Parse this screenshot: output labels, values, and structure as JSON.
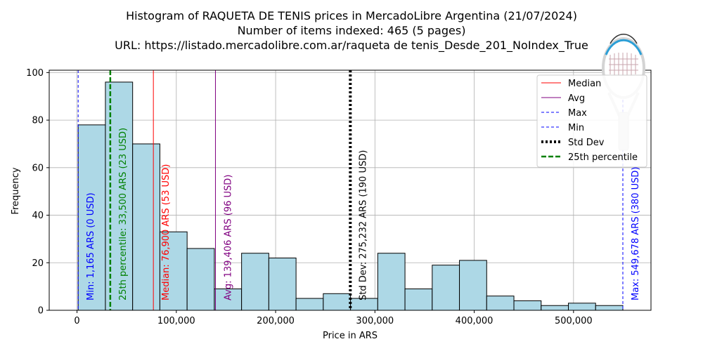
{
  "titles": {
    "line1": "Histogram of RAQUETA DE TENIS prices in MercadoLibre Argentina (21/07/2024)",
    "line2": "Number of items indexed: 465 (5 pages)",
    "line3": "URL: https://listado.mercadolibre.com.ar/raqueta de tenis_Desde_201_NoIndex_True"
  },
  "chart_data": {
    "type": "bar",
    "title": "Histogram of RAQUETA DE TENIS prices in MercadoLibre Argentina (21/07/2024)",
    "xlabel": "Price in ARS",
    "ylabel": "Frequency",
    "xlim": [
      -28000,
      578000
    ],
    "ylim": [
      0,
      101
    ],
    "xticks": [
      0,
      100000,
      200000,
      300000,
      400000,
      500000
    ],
    "xtick_labels": [
      "0",
      "100,000",
      "200,000",
      "300,000",
      "400,000",
      "500,000"
    ],
    "yticks": [
      0,
      20,
      40,
      60,
      80,
      100
    ],
    "ytick_labels": [
      "0",
      "20",
      "40",
      "60",
      "80",
      "100"
    ],
    "grid": true,
    "bar_color": "#add8e6",
    "bin_start": 1165,
    "bin_width": 27425.65,
    "values": [
      78,
      96,
      70,
      33,
      26,
      9,
      24,
      22,
      5,
      7,
      5,
      24,
      9,
      19,
      21,
      6,
      4,
      2,
      3,
      2
    ],
    "reference_lines": [
      {
        "name": "Median",
        "x": 76900,
        "color": "#ff0000",
        "style": "solid",
        "width": 1,
        "label": "Median: 76,900 ARS (53 USD)"
      },
      {
        "name": "Avg",
        "x": 139406,
        "color": "#800080",
        "style": "solid",
        "width": 1,
        "label": "Avg: 139,406 ARS (96 USD)"
      },
      {
        "name": "Max",
        "x": 549678,
        "color": "#0000ff",
        "style": "dashed",
        "width": 1,
        "label": "Max: 549,678 ARS (380 USD)"
      },
      {
        "name": "Min",
        "x": 1165,
        "color": "#0000ff",
        "style": "dashed",
        "width": 1,
        "label": "Min: 1,165 ARS (0 USD)"
      },
      {
        "name": "Std Dev",
        "x": 275232,
        "color": "#000000",
        "style": "dotted",
        "width": 4,
        "label": "Std Dev: 275,232 ARS (190 USD)"
      },
      {
        "name": "25th percentile",
        "x": 33500,
        "color": "#008000",
        "style": "dashed",
        "width": 2.5,
        "label": "25th percentile: 33,500 ARS (23 USD)"
      }
    ],
    "legend": {
      "position": "top-right",
      "entries": [
        "Median",
        "Avg",
        "Max",
        "Min",
        "Std Dev",
        "25th percentile"
      ]
    }
  }
}
